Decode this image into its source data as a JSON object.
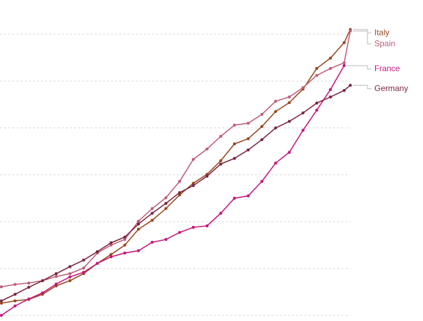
{
  "chart_data": {
    "type": "line",
    "x": [
      0,
      1,
      2,
      3,
      4,
      5,
      6,
      7,
      8,
      9,
      10,
      11,
      12,
      13,
      14,
      15,
      16,
      17,
      18,
      19,
      20,
      21,
      22,
      23,
      24,
      25,
      25.45
    ],
    "xlim": [
      -0.1,
      30.75
    ],
    "ylim": [
      -0.12,
      6.73
    ],
    "yticks": [
      0,
      1,
      2,
      3,
      4,
      5,
      6
    ],
    "grid": true,
    "series": [
      {
        "name": "Italy",
        "color": "#9a4a22",
        "values": [
          0.26,
          0.31,
          0.34,
          0.45,
          0.63,
          0.74,
          0.89,
          1.11,
          1.3,
          1.5,
          1.84,
          2.03,
          2.28,
          2.57,
          2.82,
          3.01,
          3.3,
          3.66,
          3.77,
          4.03,
          4.35,
          4.54,
          4.83,
          5.27,
          5.49,
          5.82,
          6.1
        ]
      },
      {
        "name": "Spain",
        "color": "#c0607a",
        "values": [
          0.61,
          0.66,
          0.69,
          0.74,
          0.83,
          0.89,
          1.01,
          1.33,
          1.5,
          1.62,
          2.01,
          2.28,
          2.51,
          2.86,
          3.33,
          3.55,
          3.82,
          4.06,
          4.1,
          4.29,
          4.57,
          4.66,
          4.86,
          5.12,
          5.27,
          5.39,
          6.07
        ]
      },
      {
        "name": "France",
        "color": "#c8187a",
        "values": [
          0.0,
          0.2,
          0.35,
          0.48,
          0.67,
          0.82,
          0.92,
          1.11,
          1.25,
          1.33,
          1.38,
          1.56,
          1.62,
          1.77,
          1.88,
          1.91,
          2.18,
          2.5,
          2.55,
          2.86,
          3.25,
          3.48,
          3.95,
          4.38,
          4.82,
          5.33,
          null
        ]
      },
      {
        "name": "Germany",
        "color": "#7a2840",
        "values": [
          0.31,
          0.45,
          0.6,
          0.74,
          0.89,
          1.04,
          1.18,
          1.36,
          1.55,
          1.67,
          1.95,
          2.18,
          2.39,
          2.62,
          2.77,
          2.97,
          3.23,
          3.35,
          3.53,
          3.75,
          4.0,
          4.14,
          4.32,
          4.53,
          4.66,
          4.8,
          4.91
        ]
      }
    ]
  }
}
